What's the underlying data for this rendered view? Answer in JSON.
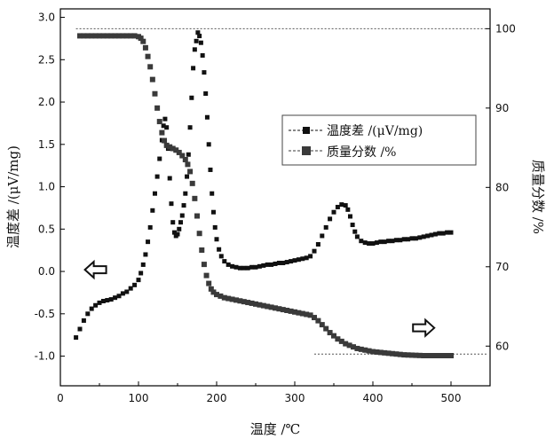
{
  "chart_data": {
    "type": "scatter",
    "xlabel": "温度 /℃",
    "ylabel_left": "温度差 /(μV/mg)",
    "ylabel_right": "质量分数 /%",
    "xlim": [
      0,
      550
    ],
    "ylim_left": [
      -1.35,
      3.1
    ],
    "ylim_right": [
      55,
      102.5
    ],
    "x_ticks": [
      0,
      100,
      200,
      300,
      400,
      500
    ],
    "y_left_ticks": [
      "-1.0",
      "-0.5",
      "0.0",
      "0.5",
      "1.0",
      "1.5",
      "2.0",
      "2.5",
      "3.0"
    ],
    "y_left_tick_values": [
      -1.0,
      -0.5,
      0.0,
      0.5,
      1.0,
      1.5,
      2.0,
      2.5,
      3.0
    ],
    "y_right_ticks": [
      "60",
      "70",
      "80",
      "90",
      "100"
    ],
    "y_right_tick_values": [
      60,
      70,
      80,
      90,
      100
    ],
    "reference_lines_right_axis": [
      100,
      59
    ],
    "legend_position": "upper-right",
    "arrows": [
      {
        "x": 45,
        "y": 0.02,
        "direction": "left",
        "axis": "left"
      },
      {
        "x": 465,
        "y": 62.3,
        "direction": "right",
        "axis": "right"
      }
    ],
    "series": [
      {
        "name": "温度差 /(μV/mg)",
        "axis": "left",
        "color": "#111111",
        "marker_size": 5,
        "points": [
          [
            20,
            -0.78
          ],
          [
            25,
            -0.68
          ],
          [
            30,
            -0.58
          ],
          [
            35,
            -0.5
          ],
          [
            40,
            -0.44
          ],
          [
            45,
            -0.4
          ],
          [
            50,
            -0.37
          ],
          [
            55,
            -0.35
          ],
          [
            60,
            -0.34
          ],
          [
            65,
            -0.33
          ],
          [
            70,
            -0.31
          ],
          [
            75,
            -0.29
          ],
          [
            80,
            -0.26
          ],
          [
            85,
            -0.24
          ],
          [
            90,
            -0.2
          ],
          [
            95,
            -0.16
          ],
          [
            100,
            -0.1
          ],
          [
            103,
            -0.02
          ],
          [
            106,
            0.08
          ],
          [
            109,
            0.2
          ],
          [
            112,
            0.35
          ],
          [
            115,
            0.52
          ],
          [
            118,
            0.72
          ],
          [
            121,
            0.92
          ],
          [
            124,
            1.12
          ],
          [
            127,
            1.33
          ],
          [
            130,
            1.55
          ],
          [
            132,
            1.72
          ],
          [
            134,
            1.8
          ],
          [
            136,
            1.7
          ],
          [
            138,
            1.45
          ],
          [
            140,
            1.1
          ],
          [
            142,
            0.8
          ],
          [
            144,
            0.58
          ],
          [
            146,
            0.46
          ],
          [
            148,
            0.42
          ],
          [
            150,
            0.44
          ],
          [
            152,
            0.5
          ],
          [
            154,
            0.58
          ],
          [
            156,
            0.66
          ],
          [
            158,
            0.78
          ],
          [
            160,
            0.92
          ],
          [
            162,
            1.12
          ],
          [
            164,
            1.38
          ],
          [
            166,
            1.7
          ],
          [
            168,
            2.05
          ],
          [
            170,
            2.4
          ],
          [
            172,
            2.62
          ],
          [
            174,
            2.72
          ],
          [
            176,
            2.82
          ],
          [
            178,
            2.78
          ],
          [
            180,
            2.7
          ],
          [
            182,
            2.55
          ],
          [
            184,
            2.35
          ],
          [
            186,
            2.1
          ],
          [
            188,
            1.82
          ],
          [
            190,
            1.5
          ],
          [
            192,
            1.2
          ],
          [
            194,
            0.92
          ],
          [
            196,
            0.7
          ],
          [
            198,
            0.52
          ],
          [
            200,
            0.38
          ],
          [
            203,
            0.26
          ],
          [
            206,
            0.18
          ],
          [
            210,
            0.12
          ],
          [
            215,
            0.08
          ],
          [
            220,
            0.06
          ],
          [
            225,
            0.05
          ],
          [
            230,
            0.04
          ],
          [
            235,
            0.04
          ],
          [
            240,
            0.04
          ],
          [
            245,
            0.05
          ],
          [
            250,
            0.05
          ],
          [
            255,
            0.06
          ],
          [
            260,
            0.07
          ],
          [
            265,
            0.08
          ],
          [
            270,
            0.08
          ],
          [
            275,
            0.09
          ],
          [
            280,
            0.1
          ],
          [
            285,
            0.1
          ],
          [
            290,
            0.11
          ],
          [
            295,
            0.12
          ],
          [
            300,
            0.13
          ],
          [
            305,
            0.14
          ],
          [
            310,
            0.15
          ],
          [
            315,
            0.16
          ],
          [
            320,
            0.18
          ],
          [
            325,
            0.24
          ],
          [
            330,
            0.32
          ],
          [
            335,
            0.42
          ],
          [
            340,
            0.52
          ],
          [
            345,
            0.62
          ],
          [
            350,
            0.7
          ],
          [
            355,
            0.76
          ],
          [
            360,
            0.79
          ],
          [
            365,
            0.78
          ],
          [
            368,
            0.73
          ],
          [
            371,
            0.65
          ],
          [
            374,
            0.55
          ],
          [
            377,
            0.47
          ],
          [
            380,
            0.41
          ],
          [
            385,
            0.36
          ],
          [
            390,
            0.34
          ],
          [
            395,
            0.33
          ],
          [
            400,
            0.33
          ],
          [
            405,
            0.34
          ],
          [
            410,
            0.35
          ],
          [
            415,
            0.35
          ],
          [
            420,
            0.36
          ],
          [
            425,
            0.36
          ],
          [
            430,
            0.37
          ],
          [
            435,
            0.37
          ],
          [
            440,
            0.38
          ],
          [
            445,
            0.38
          ],
          [
            450,
            0.39
          ],
          [
            455,
            0.39
          ],
          [
            460,
            0.4
          ],
          [
            465,
            0.41
          ],
          [
            470,
            0.42
          ],
          [
            475,
            0.43
          ],
          [
            480,
            0.44
          ],
          [
            485,
            0.45
          ],
          [
            490,
            0.45
          ],
          [
            495,
            0.46
          ],
          [
            500,
            0.46
          ]
        ]
      },
      {
        "name": "质量分数 /%",
        "axis": "right",
        "color": "#3a3a3a",
        "marker_size": 6,
        "points": [
          [
            25,
            99.1
          ],
          [
            30,
            99.1
          ],
          [
            35,
            99.1
          ],
          [
            40,
            99.1
          ],
          [
            45,
            99.1
          ],
          [
            50,
            99.1
          ],
          [
            55,
            99.1
          ],
          [
            60,
            99.1
          ],
          [
            65,
            99.1
          ],
          [
            70,
            99.1
          ],
          [
            75,
            99.1
          ],
          [
            80,
            99.1
          ],
          [
            85,
            99.1
          ],
          [
            90,
            99.1
          ],
          [
            95,
            99.1
          ],
          [
            100,
            99.0
          ],
          [
            103,
            98.8
          ],
          [
            106,
            98.4
          ],
          [
            109,
            97.6
          ],
          [
            112,
            96.5
          ],
          [
            115,
            95.2
          ],
          [
            118,
            93.6
          ],
          [
            121,
            91.8
          ],
          [
            124,
            90.0
          ],
          [
            127,
            88.3
          ],
          [
            130,
            86.9
          ],
          [
            133,
            85.9
          ],
          [
            136,
            85.3
          ],
          [
            140,
            85.1
          ],
          [
            144,
            84.9
          ],
          [
            148,
            84.7
          ],
          [
            152,
            84.4
          ],
          [
            156,
            84.0
          ],
          [
            160,
            83.5
          ],
          [
            163,
            82.9
          ],
          [
            166,
            82.0
          ],
          [
            169,
            80.5
          ],
          [
            172,
            78.6
          ],
          [
            175,
            76.4
          ],
          [
            178,
            74.2
          ],
          [
            181,
            72.1
          ],
          [
            184,
            70.3
          ],
          [
            187,
            68.9
          ],
          [
            190,
            67.9
          ],
          [
            193,
            67.2
          ],
          [
            196,
            66.8
          ],
          [
            200,
            66.5
          ],
          [
            205,
            66.3
          ],
          [
            210,
            66.1
          ],
          [
            215,
            66.0
          ],
          [
            220,
            65.9
          ],
          [
            225,
            65.8
          ],
          [
            230,
            65.7
          ],
          [
            235,
            65.6
          ],
          [
            240,
            65.5
          ],
          [
            245,
            65.4
          ],
          [
            250,
            65.3
          ],
          [
            255,
            65.2
          ],
          [
            260,
            65.1
          ],
          [
            265,
            65.0
          ],
          [
            270,
            64.9
          ],
          [
            275,
            64.8
          ],
          [
            280,
            64.7
          ],
          [
            285,
            64.6
          ],
          [
            290,
            64.5
          ],
          [
            295,
            64.4
          ],
          [
            300,
            64.3
          ],
          [
            305,
            64.2
          ],
          [
            310,
            64.1
          ],
          [
            315,
            64.0
          ],
          [
            320,
            63.9
          ],
          [
            325,
            63.6
          ],
          [
            330,
            63.2
          ],
          [
            335,
            62.7
          ],
          [
            340,
            62.2
          ],
          [
            345,
            61.7
          ],
          [
            350,
            61.3
          ],
          [
            355,
            60.9
          ],
          [
            360,
            60.6
          ],
          [
            365,
            60.3
          ],
          [
            370,
            60.1
          ],
          [
            375,
            59.9
          ],
          [
            380,
            59.7
          ],
          [
            385,
            59.6
          ],
          [
            390,
            59.5
          ],
          [
            395,
            59.4
          ],
          [
            400,
            59.3
          ],
          [
            405,
            59.25
          ],
          [
            410,
            59.2
          ],
          [
            415,
            59.15
          ],
          [
            420,
            59.1
          ],
          [
            425,
            59.05
          ],
          [
            430,
            59.0
          ],
          [
            435,
            58.95
          ],
          [
            440,
            58.9
          ],
          [
            445,
            58.88
          ],
          [
            450,
            58.86
          ],
          [
            455,
            58.84
          ],
          [
            460,
            58.82
          ],
          [
            465,
            58.8
          ],
          [
            470,
            58.8
          ],
          [
            475,
            58.8
          ],
          [
            480,
            58.8
          ],
          [
            485,
            58.8
          ],
          [
            490,
            58.8
          ],
          [
            495,
            58.8
          ],
          [
            500,
            58.8
          ]
        ]
      }
    ]
  }
}
